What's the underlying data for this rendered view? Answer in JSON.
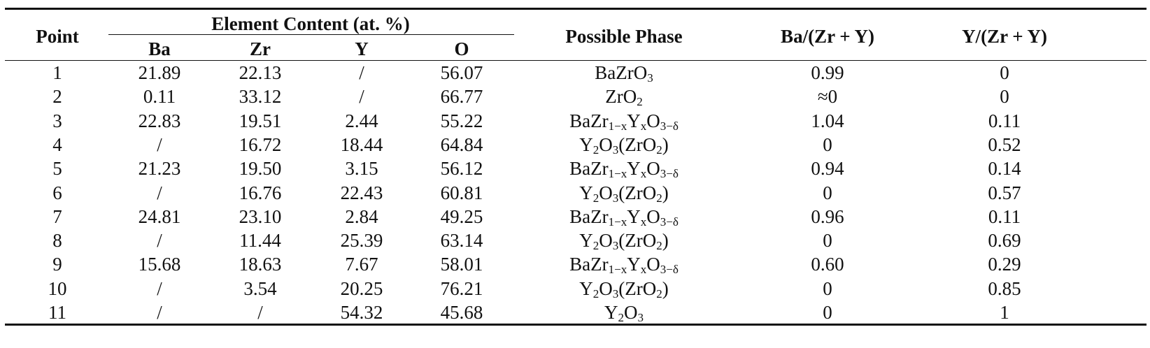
{
  "table": {
    "header": {
      "point": "Point",
      "group": "Element Content (at. %)",
      "elements": [
        "Ba",
        "Zr",
        "Y",
        "O"
      ],
      "phase": "Possible Phase",
      "ba_ratio": "Ba/(Zr + Y)",
      "y_ratio": "Y/(Zr + Y)"
    },
    "rows": [
      [
        "1",
        "21.89",
        "22.13",
        "/",
        "56.07",
        [
          "BaZrO",
          {
            "sub": "3"
          }
        ],
        "0.99",
        "0"
      ],
      [
        "2",
        "0.11",
        "33.12",
        "/",
        "66.77",
        [
          "ZrO",
          {
            "sub": "2"
          }
        ],
        "≈0",
        "0"
      ],
      [
        "3",
        "22.83",
        "19.51",
        "2.44",
        "55.22",
        [
          "BaZr",
          {
            "sub": "1−x"
          },
          "Y",
          {
            "sub": "x"
          },
          "O",
          {
            "sub": "3−δ"
          }
        ],
        "1.04",
        "0.11"
      ],
      [
        "4",
        "/",
        "16.72",
        "18.44",
        "64.84",
        [
          "Y",
          {
            "sub": "2"
          },
          "O",
          {
            "sub": "3"
          },
          "(ZrO",
          {
            "sub": "2"
          },
          ")"
        ],
        "0",
        "0.52"
      ],
      [
        "5",
        "21.23",
        "19.50",
        "3.15",
        "56.12",
        [
          "BaZr",
          {
            "sub": "1−x"
          },
          "Y",
          {
            "sub": "x"
          },
          "O",
          {
            "sub": "3−δ"
          }
        ],
        "0.94",
        "0.14"
      ],
      [
        "6",
        "/",
        "16.76",
        "22.43",
        "60.81",
        [
          "Y",
          {
            "sub": "2"
          },
          "O",
          {
            "sub": "3"
          },
          "(ZrO",
          {
            "sub": "2"
          },
          ")"
        ],
        "0",
        "0.57"
      ],
      [
        "7",
        "24.81",
        "23.10",
        "2.84",
        "49.25",
        [
          "BaZr",
          {
            "sub": "1−x"
          },
          "Y",
          {
            "sub": "x"
          },
          "O",
          {
            "sub": "3−δ"
          }
        ],
        "0.96",
        "0.11"
      ],
      [
        "8",
        "/",
        "11.44",
        "25.39",
        "63.14",
        [
          "Y",
          {
            "sub": "2"
          },
          "O",
          {
            "sub": "3"
          },
          "(ZrO",
          {
            "sub": "2"
          },
          ")"
        ],
        "0",
        "0.69"
      ],
      [
        "9",
        "15.68",
        "18.63",
        "7.67",
        "58.01",
        [
          "BaZr",
          {
            "sub": "1−x"
          },
          "Y",
          {
            "sub": "x"
          },
          "O",
          {
            "sub": "3−δ"
          }
        ],
        "0.60",
        "0.29"
      ],
      [
        "10",
        "/",
        "3.54",
        "20.25",
        "76.21",
        [
          "Y",
          {
            "sub": "2"
          },
          "O",
          {
            "sub": "3"
          },
          "(ZrO",
          {
            "sub": "2"
          },
          ")"
        ],
        "0",
        "0.85"
      ],
      [
        "11",
        "/",
        "/",
        "54.32",
        "45.68",
        [
          "Y",
          {
            "sub": "2"
          },
          "O",
          {
            "sub": "3"
          }
        ],
        "0",
        "1"
      ]
    ]
  }
}
